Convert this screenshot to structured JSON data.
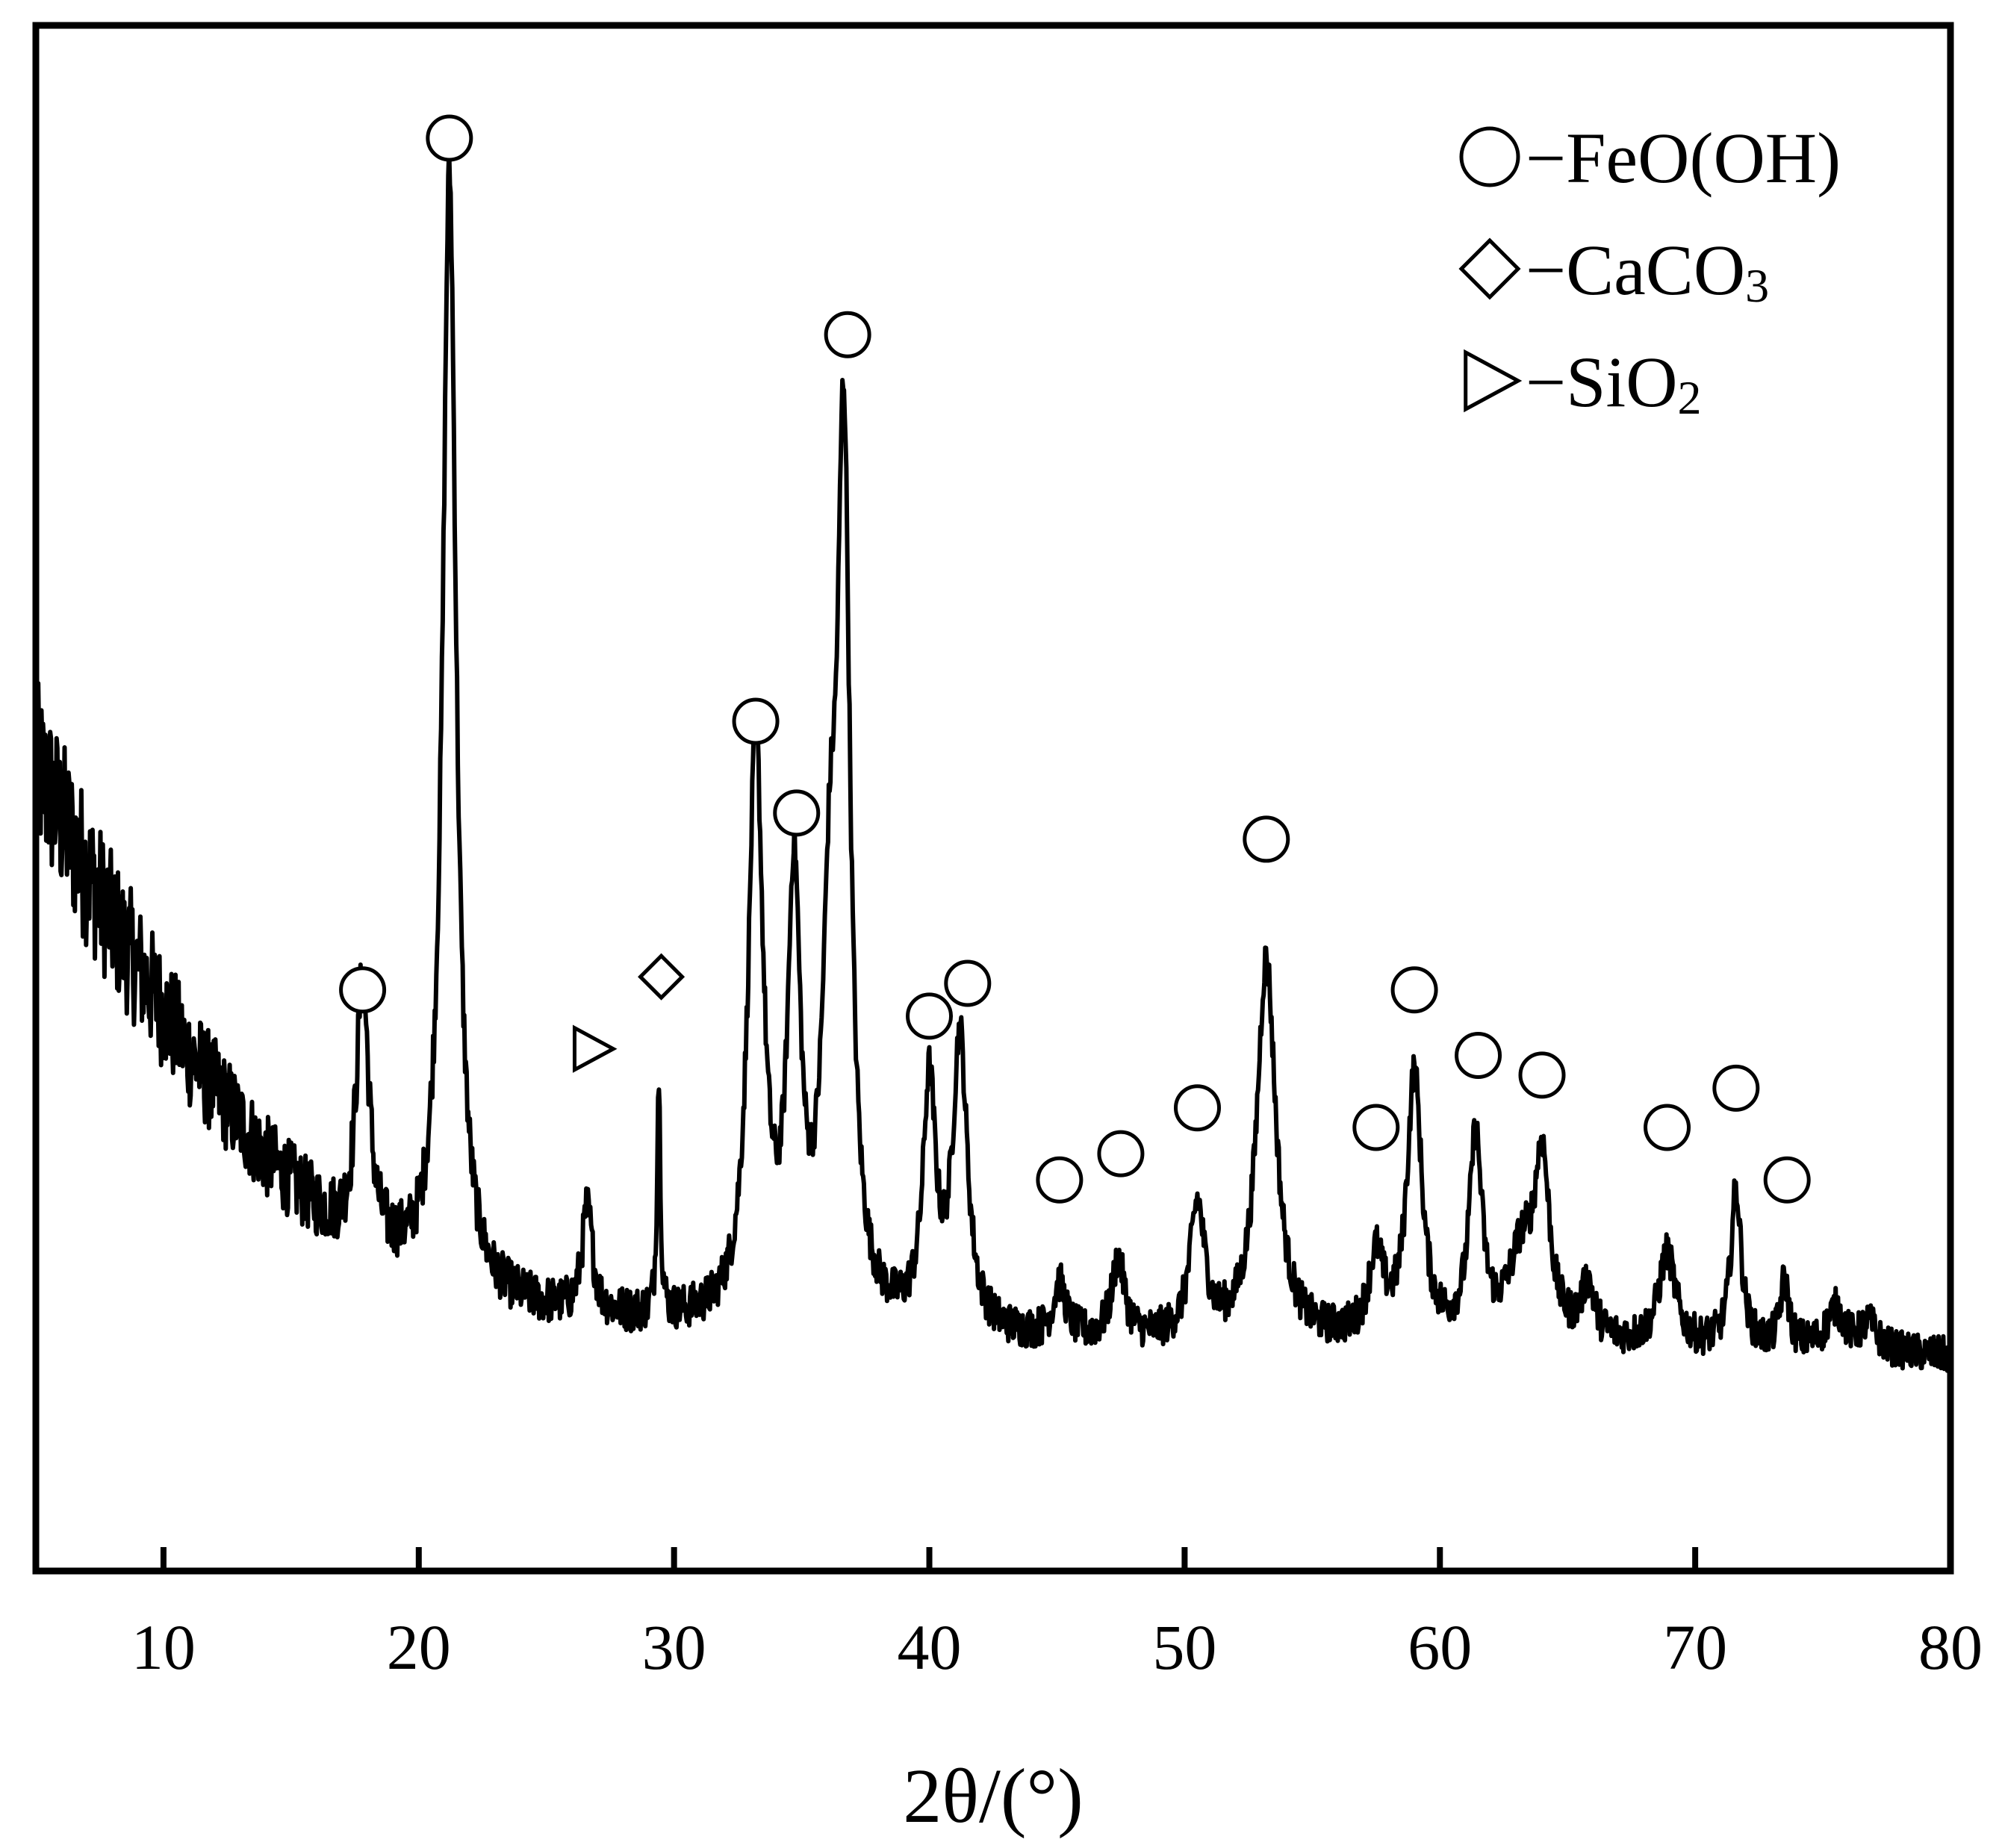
{
  "chart_data": {
    "type": "line",
    "title": "",
    "xlabel": "2θ/(°)",
    "ylabel": "",
    "xlim": [
      5,
      80
    ],
    "ylim": [
      0,
      100
    ],
    "x_ticks": [
      10,
      20,
      30,
      40,
      50,
      60,
      70,
      80
    ],
    "grid": false,
    "y_axis_ticks_shown": false,
    "line_color": "#000000",
    "noise_amplitude": 1.0,
    "baseline": [
      [
        5,
        52
      ],
      [
        8,
        40
      ],
      [
        11,
        30
      ],
      [
        14,
        22
      ],
      [
        17,
        16
      ],
      [
        20,
        13
      ],
      [
        23,
        11
      ],
      [
        26,
        10
      ],
      [
        30,
        9.5
      ],
      [
        35,
        9
      ],
      [
        40,
        8.5
      ],
      [
        45,
        8
      ],
      [
        50,
        8
      ],
      [
        55,
        8
      ],
      [
        60,
        8
      ],
      [
        65,
        8
      ],
      [
        70,
        7.5
      ],
      [
        75,
        7.5
      ],
      [
        80,
        7
      ]
    ],
    "peaks": [
      {
        "x": 17.8,
        "height": 20,
        "width": 0.3
      },
      {
        "x": 21.2,
        "height": 85,
        "width": 0.32
      },
      {
        "x": 26.6,
        "height": 8,
        "width": 0.25
      },
      {
        "x": 29.4,
        "height": 18,
        "width": 0.08
      },
      {
        "x": 33.2,
        "height": 44,
        "width": 0.35
      },
      {
        "x": 34.7,
        "height": 32,
        "width": 0.3
      },
      {
        "x": 36.1,
        "height": 25,
        "width": 0.35
      },
      {
        "x": 36.65,
        "height": 64,
        "width": 0.3
      },
      {
        "x": 40.0,
        "height": 18,
        "width": 0.3
      },
      {
        "x": 41.2,
        "height": 22,
        "width": 0.35
      },
      {
        "x": 45.1,
        "height": 4,
        "width": 0.3
      },
      {
        "x": 47.4,
        "height": 6,
        "width": 0.3
      },
      {
        "x": 50.5,
        "height": 10,
        "width": 0.35
      },
      {
        "x": 53.2,
        "height": 29,
        "width": 0.45
      },
      {
        "x": 57.5,
        "height": 6,
        "width": 0.35
      },
      {
        "x": 59.0,
        "height": 20,
        "width": 0.35
      },
      {
        "x": 61.4,
        "height": 15,
        "width": 0.3
      },
      {
        "x": 63.2,
        "height": 6,
        "width": 0.6
      },
      {
        "x": 64.0,
        "height": 13,
        "width": 0.35
      },
      {
        "x": 65.8,
        "height": 4,
        "width": 0.3
      },
      {
        "x": 68.9,
        "height": 7,
        "width": 0.4
      },
      {
        "x": 71.6,
        "height": 12,
        "width": 0.25
      },
      {
        "x": 73.5,
        "height": 5,
        "width": 0.2
      },
      {
        "x": 75.5,
        "height": 3,
        "width": 0.4
      },
      {
        "x": 76.8,
        "height": 2,
        "width": 0.4
      }
    ],
    "annotations": [
      {
        "x": 17.8,
        "y": 35,
        "marker": "circle"
      },
      {
        "x": 21.2,
        "y": 100,
        "marker": "circle"
      },
      {
        "x": 26.8,
        "y": 30.5,
        "marker": "triangle"
      },
      {
        "x": 29.5,
        "y": 36,
        "marker": "diamond"
      },
      {
        "x": 33.2,
        "y": 55.5,
        "marker": "circle"
      },
      {
        "x": 34.8,
        "y": 48.5,
        "marker": "circle"
      },
      {
        "x": 36.8,
        "y": 85,
        "marker": "circle"
      },
      {
        "x": 40.0,
        "y": 33,
        "marker": "circle"
      },
      {
        "x": 41.5,
        "y": 35.5,
        "marker": "circle"
      },
      {
        "x": 45.1,
        "y": 20.5,
        "marker": "circle"
      },
      {
        "x": 47.5,
        "y": 22.5,
        "marker": "circle"
      },
      {
        "x": 50.5,
        "y": 26,
        "marker": "circle"
      },
      {
        "x": 53.2,
        "y": 46.5,
        "marker": "circle"
      },
      {
        "x": 57.5,
        "y": 24.5,
        "marker": "circle"
      },
      {
        "x": 59.0,
        "y": 35,
        "marker": "circle"
      },
      {
        "x": 61.5,
        "y": 30,
        "marker": "circle"
      },
      {
        "x": 64.0,
        "y": 28.5,
        "marker": "circle"
      },
      {
        "x": 68.9,
        "y": 24.5,
        "marker": "circle"
      },
      {
        "x": 71.6,
        "y": 27.5,
        "marker": "circle"
      },
      {
        "x": 73.6,
        "y": 20.5,
        "marker": "circle"
      }
    ],
    "legend": {
      "position": "top-right",
      "entries": [
        {
          "marker": "circle",
          "label": "−FeO(OH)",
          "subscript": ""
        },
        {
          "marker": "diamond",
          "label": "−CaCO",
          "subscript": "3"
        },
        {
          "marker": "triangle",
          "label": "−SiO",
          "subscript": "2"
        }
      ]
    }
  }
}
